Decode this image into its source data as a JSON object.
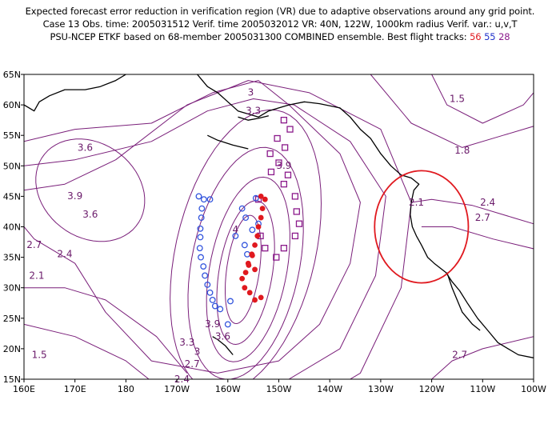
{
  "title": {
    "line1": "Expected forecast error reduction in verification region (VR) due to adaptive observations around any grid point.",
    "line2": "Case 13  Obs. time: 2005031512  Verif. time 2005032012  VR: 40N, 122W, 1000km radius  Verif. var.: u,v,T",
    "line3_prefix": "PSU-NCEP ETKF based on 68-member 2005031300 COMBINED ensemble.  Best flight tracks:",
    "track_red": "56",
    "track_blue": "55",
    "track_purple": "28"
  },
  "colors": {
    "contour": "#7a1f7a",
    "coast": "#000000",
    "red_track": "#e0191f",
    "blue_track": "#3355dd",
    "purple_track": "#8b1a8b",
    "vr_circle": "#e0191f"
  },
  "axes": {
    "x_labels": [
      "160E",
      "170E",
      "180",
      "170W",
      "160W",
      "150W",
      "140W",
      "130W",
      "120W",
      "110W",
      "100W"
    ],
    "y_labels": [
      "15N",
      "20N",
      "25N",
      "30N",
      "35N",
      "40N",
      "45N",
      "50N",
      "55N",
      "60N",
      "65N"
    ],
    "x_range_lon_east": [
      160,
      260
    ],
    "y_range_lat": [
      15,
      65
    ]
  },
  "contour_labels": [
    {
      "text": "3",
      "lon": 204.5,
      "lat": 61.5
    },
    {
      "text": "3.3",
      "lon": 205,
      "lat": 58.5
    },
    {
      "text": "3.6",
      "lon": 172,
      "lat": 52.5
    },
    {
      "text": "3.9",
      "lon": 170,
      "lat": 44.5
    },
    {
      "text": "3.6",
      "lon": 173,
      "lat": 41.5
    },
    {
      "text": "3.9",
      "lon": 211,
      "lat": 49.5
    },
    {
      "text": "4",
      "lon": 201.5,
      "lat": 39
    },
    {
      "text": "2.7",
      "lon": 162,
      "lat": 36.5
    },
    {
      "text": "2.4",
      "lon": 168,
      "lat": 35
    },
    {
      "text": "2.1",
      "lon": 162.5,
      "lat": 31.5
    },
    {
      "text": "1.5",
      "lon": 163,
      "lat": 18.5
    },
    {
      "text": "3.9",
      "lon": 197,
      "lat": 23.5
    },
    {
      "text": "3.6",
      "lon": 199,
      "lat": 21.5
    },
    {
      "text": "3.3",
      "lon": 192,
      "lat": 20.5
    },
    {
      "text": "3",
      "lon": 194,
      "lat": 19
    },
    {
      "text": "2.7",
      "lon": 193,
      "lat": 17
    },
    {
      "text": "2.4",
      "lon": 191,
      "lat": 14.5
    },
    {
      "text": "1.5",
      "lon": 245,
      "lat": 60.5
    },
    {
      "text": "1.8",
      "lon": 246,
      "lat": 52
    },
    {
      "text": "2.1",
      "lon": 237,
      "lat": 43.5
    },
    {
      "text": "2.4",
      "lon": 251,
      "lat": 43.5
    },
    {
      "text": "2.7",
      "lon": 250,
      "lat": 41
    },
    {
      "text": "2.7",
      "lon": 245.5,
      "lat": 18.5
    }
  ],
  "verification_region": {
    "lat": 40,
    "lon": 238,
    "radius_deg": 9.2
  },
  "tracks": {
    "red_56": {
      "style": "filled-circle",
      "points": [
        [
          206.5,
          45
        ],
        [
          207.3,
          44.5
        ],
        [
          206.8,
          43
        ],
        [
          206.5,
          41.5
        ],
        [
          206,
          40
        ],
        [
          205.8,
          38.5
        ],
        [
          205.3,
          37
        ],
        [
          204.7,
          35.5
        ],
        [
          204,
          34
        ],
        [
          203.5,
          32.5
        ],
        [
          202.8,
          31.5
        ],
        [
          203.3,
          30
        ],
        [
          204.3,
          29.2
        ],
        [
          205.3,
          28
        ],
        [
          206.5,
          28.4
        ],
        [
          204.1,
          33.7
        ],
        [
          205.3,
          33
        ],
        [
          204.8,
          35.3
        ]
      ]
    },
    "blue_55": {
      "style": "open-circle",
      "points": [
        [
          194.3,
          45
        ],
        [
          195.3,
          44.5
        ],
        [
          196.5,
          44.5
        ],
        [
          194.9,
          43
        ],
        [
          194.8,
          41.5
        ],
        [
          194.6,
          39.7
        ],
        [
          194.6,
          38.3
        ],
        [
          194.5,
          36.5
        ],
        [
          194.7,
          35
        ],
        [
          195.2,
          33.5
        ],
        [
          195.5,
          32
        ],
        [
          196,
          30.5
        ],
        [
          196.5,
          29.2
        ],
        [
          197,
          28
        ],
        [
          197.5,
          27
        ],
        [
          198.5,
          26.5
        ],
        [
          200.5,
          27.8
        ],
        [
          200,
          24
        ],
        [
          201.5,
          38.5
        ],
        [
          203.3,
          37
        ],
        [
          203.8,
          35.5
        ],
        [
          205.5,
          44.7
        ],
        [
          206,
          40.5
        ],
        [
          204.8,
          39.5
        ],
        [
          203.5,
          41.5
        ],
        [
          202.8,
          43
        ]
      ]
    },
    "purple_28": {
      "style": "open-square",
      "points": [
        [
          211,
          57.5
        ],
        [
          212.2,
          56
        ],
        [
          209.7,
          54.5
        ],
        [
          211.2,
          53
        ],
        [
          208.3,
          52
        ],
        [
          210,
          50.5
        ],
        [
          211.8,
          48.5
        ],
        [
          208.5,
          49
        ],
        [
          211,
          47
        ],
        [
          213.2,
          45
        ],
        [
          213.5,
          42.5
        ],
        [
          214,
          40.5
        ],
        [
          213.2,
          38.5
        ],
        [
          211,
          36.5
        ],
        [
          209.5,
          35
        ],
        [
          207.3,
          36.5
        ],
        [
          206.4,
          38.5
        ],
        [
          206,
          44.5
        ]
      ]
    }
  }
}
